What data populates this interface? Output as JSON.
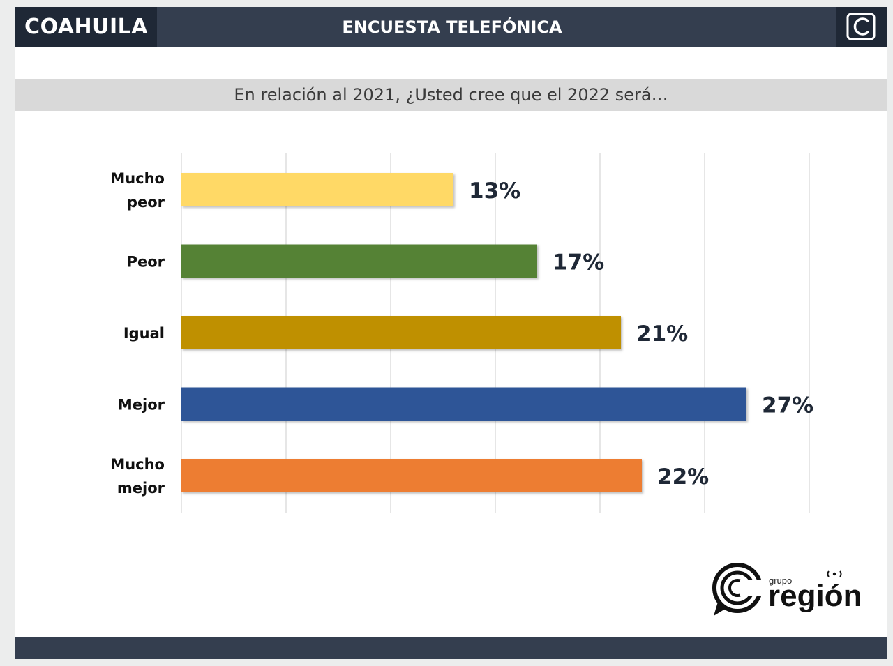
{
  "header": {
    "region": "COAHUILA",
    "title": "ENCUESTA TELEFÓNICA",
    "logo_icon": "c-logo-icon"
  },
  "question": "En relación al 2021, ¿Usted cree que el 2022 será…",
  "chart_data": {
    "type": "bar",
    "orientation": "horizontal",
    "categories": [
      "Mucho peor",
      "Peor",
      "Igual",
      "Mejor",
      "Mucho mejor"
    ],
    "category_lines": [
      [
        "Mucho",
        "peor"
      ],
      [
        "Peor"
      ],
      [
        "Igual"
      ],
      [
        "Mejor"
      ],
      [
        "Mucho",
        "mejor"
      ]
    ],
    "values": [
      13,
      17,
      21,
      27,
      22
    ],
    "value_labels": [
      "13%",
      "17%",
      "21%",
      "27%",
      "22%"
    ],
    "colors": [
      "#ffd966",
      "#548235",
      "#bf9000",
      "#2f5597",
      "#ed7d31"
    ],
    "xlim": [
      0,
      30
    ],
    "grid": true,
    "title": "",
    "xlabel": "",
    "ylabel": ""
  },
  "brand": {
    "small": "grupo",
    "name": "región",
    "icon": "grupo-region-logo-icon"
  },
  "colors": {
    "header_dark": "#1f2836",
    "header": "#343e4f",
    "question_bg": "#d9d9d9",
    "text_dark": "#1f2836"
  }
}
